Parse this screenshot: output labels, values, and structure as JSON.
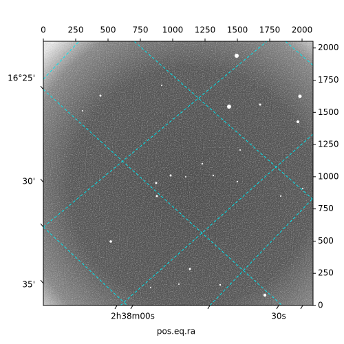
{
  "chart_data": {
    "type": "image",
    "xlabel": "pos.eq.ra",
    "xlim": [
      0,
      2085
    ],
    "xticks": [
      0,
      250,
      500,
      750,
      1000,
      1250,
      1500,
      1750,
      2000
    ],
    "ylim": [
      0,
      2052
    ],
    "yticks": [
      0,
      250,
      500,
      750,
      1000,
      1250,
      1500,
      1750,
      2000
    ],
    "dec_ticks": [
      "16°25'",
      "30'",
      "35'"
    ],
    "ra_ticks": [
      "2h38m00s",
      "30s"
    ],
    "grid_color": "#00e5ee"
  }
}
